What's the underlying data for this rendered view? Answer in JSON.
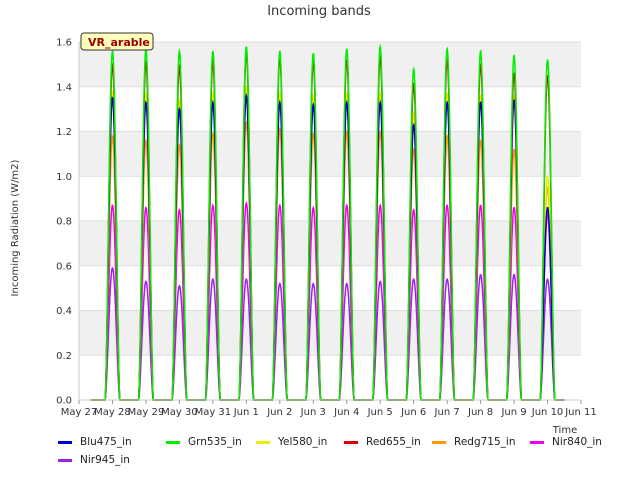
{
  "chart_data": {
    "type": "line",
    "title": "Incoming bands",
    "xlabel": "Time",
    "ylabel": "Incoming Radiation (W/m2)",
    "ylim": [
      0,
      1.6
    ],
    "yticks": [
      "0.0",
      "0.2",
      "0.4",
      "0.6",
      "0.8",
      "1.0",
      "1.2",
      "1.4",
      "1.6"
    ],
    "xticks": [
      "May 27",
      "May 28",
      "May 29",
      "May 30",
      "May 31",
      "Jun 1",
      "Jun 2",
      "Jun 3",
      "Jun 4",
      "Jun 5",
      "Jun 6",
      "Jun 7",
      "Jun 8",
      "Jun 9",
      "Jun 10",
      "Jun 11"
    ],
    "xlim": [
      0,
      15
    ],
    "annotation": "VR_arable",
    "grid": true,
    "legend_position": "bottom",
    "days": [
      "May 28",
      "May 29",
      "May 30",
      "May 31",
      "Jun 1",
      "Jun 2",
      "Jun 3",
      "Jun 4",
      "Jun 5",
      "Jun 6",
      "Jun 7",
      "Jun 8",
      "Jun 9",
      "Jun 10"
    ],
    "series": [
      {
        "name": "Blu475_in",
        "color": "#0000cc",
        "values": [
          1.35,
          1.33,
          1.3,
          1.33,
          1.36,
          1.33,
          1.32,
          1.33,
          1.33,
          1.23,
          1.33,
          1.33,
          1.34,
          0.86
        ]
      },
      {
        "name": "Grn535_in",
        "color": "#00ee00",
        "values": [
          1.56,
          1.57,
          1.56,
          1.56,
          1.58,
          1.56,
          1.55,
          1.57,
          1.58,
          1.48,
          1.57,
          1.56,
          1.54,
          1.52
        ]
      },
      {
        "name": "Yel580_in",
        "color": "#eeee00",
        "values": [
          1.38,
          1.37,
          1.34,
          1.37,
          1.4,
          1.37,
          1.36,
          1.37,
          1.37,
          1.28,
          1.37,
          1.36,
          1.36,
          1.0
        ]
      },
      {
        "name": "Red655_in",
        "color": "#dd0000",
        "values": [
          1.5,
          1.51,
          1.49,
          1.51,
          1.55,
          1.53,
          1.51,
          1.52,
          1.53,
          1.41,
          1.52,
          1.5,
          1.46,
          1.45
        ]
      },
      {
        "name": "Redg715_in",
        "color": "#ff9900",
        "values": [
          1.18,
          1.16,
          1.14,
          1.19,
          1.24,
          1.21,
          1.19,
          1.2,
          1.2,
          1.12,
          1.18,
          1.16,
          1.12,
          0.95
        ]
      },
      {
        "name": "Nir840_in",
        "color": "#ee00ee",
        "values": [
          0.87,
          0.86,
          0.85,
          0.87,
          0.88,
          0.87,
          0.86,
          0.87,
          0.87,
          0.85,
          0.87,
          0.87,
          0.86,
          0.83
        ]
      },
      {
        "name": "Nir945_in",
        "color": "#9922ee",
        "values": [
          0.59,
          0.53,
          0.51,
          0.54,
          0.54,
          0.52,
          0.52,
          0.52,
          0.53,
          0.54,
          0.54,
          0.56,
          0.56,
          0.54
        ]
      }
    ]
  }
}
